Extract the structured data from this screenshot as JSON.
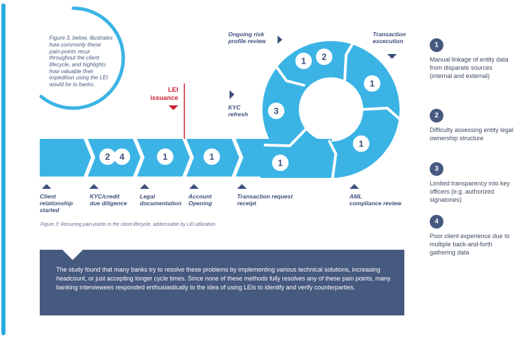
{
  "intro_text": [
    "Figure 3, below, illustrates",
    "how commonly these",
    "pain-points recur",
    "throughout the client",
    "lifecycle, and highlights",
    "how valuable their",
    "expedition using the LEI",
    "would be to banks."
  ],
  "lei_issuance": [
    "LEI",
    "issuance"
  ],
  "top_labels": {
    "ongoing_risk": [
      "Ongoing risk",
      "profile review"
    ],
    "kyc_refresh": [
      "KYC",
      "refresh"
    ],
    "transaction_execution": [
      "Transaction",
      "excecution"
    ]
  },
  "stages": [
    {
      "label": [
        "Client",
        "relationship",
        "started"
      ],
      "badges": []
    },
    {
      "label": [
        "KYC/credit",
        "due diligence"
      ],
      "badges": [
        "2",
        "4"
      ]
    },
    {
      "label": [
        "Legal",
        "documentation"
      ],
      "badges": [
        "1"
      ]
    },
    {
      "label": [
        "Account",
        "Opening"
      ],
      "badges": [
        "1"
      ]
    },
    {
      "label": [
        "Transaction request",
        "receipt"
      ],
      "badges": [
        "1"
      ]
    },
    {
      "label": [
        "AML",
        "compliance review"
      ],
      "badges": []
    }
  ],
  "ring_badges": {
    "ongoing_risk": [
      "1",
      "2"
    ],
    "transaction_execution": "1",
    "kyc_refresh": "3",
    "aml": "1"
  },
  "caption": "Figure 3: Recurring pain-points in the client lifecycle, addressable by LEI utilization",
  "summary": "The study found that many banks try to resolve these problems by implementing various technical solutions, increasing headcount, or just accepting longer cycle times. Since none of these methods fully resolves any of these pain points, many banking interviewees responded enthusiastically to the idea of using LEIs to identify and verify counterparties.",
  "legend": [
    {
      "num": "1",
      "text": "Manual linkage of entity data from disparate sources (internal and external)"
    },
    {
      "num": "2",
      "text": "Difficulty assessing entity legal ownership structure"
    },
    {
      "num": "3",
      "text": "Limited transparency into key officers (e.g. authorized signatories)"
    },
    {
      "num": "4",
      "text": "Poor client experience due to multiple back-and-forth gathering data"
    }
  ],
  "colors": {
    "blue": "#3bb4e5",
    "navy": "#46597f",
    "text": "#3d4f7c",
    "red": "#c8202f",
    "side_bar": "#29aae1"
  }
}
